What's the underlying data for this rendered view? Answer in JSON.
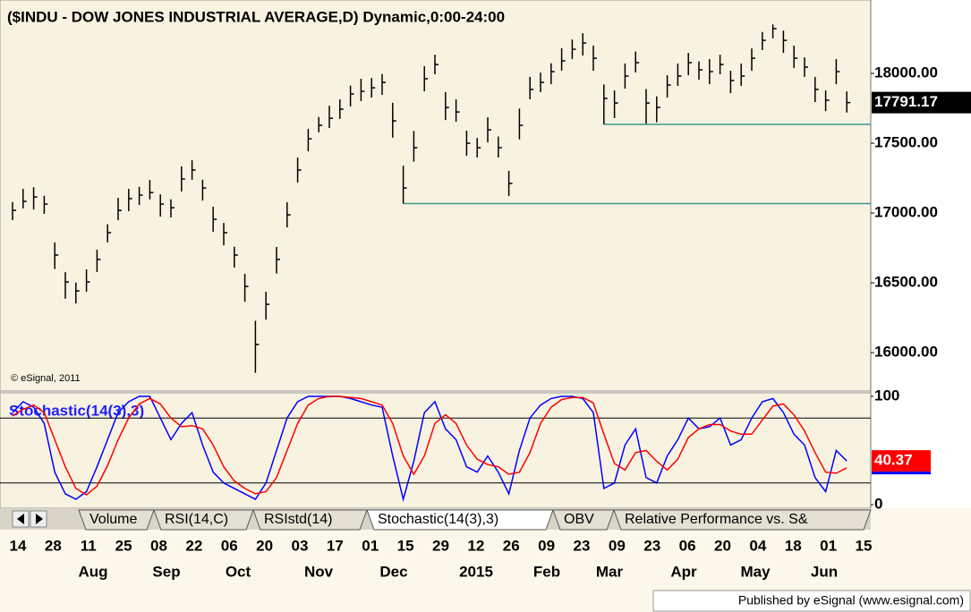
{
  "chart_data": [
    {
      "type": "ohlc",
      "title": "($INDU - DOW JONES INDUSTRIAL AVERAGE,D) Dynamic,0:00-24:00",
      "copyright": "© eSignal, 2011",
      "color": "#000000",
      "line_color": "#3a9a8a",
      "high": [
        17079,
        17173,
        17185,
        17124,
        16789,
        16576,
        16502,
        16596,
        16737,
        16919,
        17109,
        17173,
        17188,
        17237,
        17134,
        17098,
        17334,
        17378,
        17239,
        17045,
        16929,
        16759,
        16564,
        16228,
        16436,
        16757,
        17077,
        17398,
        17602,
        17688,
        17769,
        17814,
        17913,
        17962,
        17967,
        17996,
        17790,
        17339,
        17588,
        18052,
        18134,
        17866,
        17814,
        17590,
        17538,
        17686,
        17548,
        17302,
        17748,
        17975,
        18006,
        18073,
        18180,
        18243,
        18288,
        18199,
        17921,
        17878,
        18071,
        18157,
        17888,
        17836,
        17987,
        18071,
        18147,
        18086,
        18103,
        18134,
        18019,
        18071,
        18179,
        18297,
        18351,
        18307,
        18199,
        18115,
        17975,
        17878,
        18103,
        17871
      ],
      "low": [
        16949,
        17033,
        17025,
        16994,
        16599,
        16386,
        16352,
        16436,
        16577,
        16789,
        16949,
        17013,
        17058,
        17097,
        16974,
        16968,
        17154,
        17238,
        17089,
        16865,
        16769,
        16609,
        16364,
        15855,
        16236,
        16567,
        16897,
        17218,
        17442,
        17578,
        17609,
        17674,
        17763,
        17802,
        17827,
        17846,
        17540,
        17068,
        17368,
        17872,
        17994,
        17666,
        17654,
        17410,
        17398,
        17506,
        17398,
        17122,
        17528,
        17815,
        17866,
        17923,
        18020,
        18103,
        18128,
        18019,
        17635,
        17680,
        17891,
        18007,
        17640,
        17650,
        17827,
        17911,
        17987,
        17956,
        17923,
        17994,
        17859,
        17911,
        18019,
        18167,
        18251,
        18147,
        18039,
        17975,
        17795,
        17730,
        17923,
        17720
      ],
      "close": [
        17019,
        17083,
        17115,
        17064,
        16699,
        16506,
        16442,
        16506,
        16667,
        16859,
        17019,
        17103,
        17128,
        17147,
        17064,
        17038,
        17244,
        17308,
        17179,
        16955,
        16859,
        16699,
        16474,
        16058,
        16346,
        16667,
        16987,
        17308,
        17532,
        17628,
        17679,
        17744,
        17853,
        17872,
        17897,
        17936,
        17660,
        17179,
        17468,
        17962,
        18064,
        17756,
        17724,
        17500,
        17468,
        17596,
        17468,
        17212,
        17628,
        17885,
        17936,
        18013,
        18090,
        18173,
        18218,
        18109,
        17821,
        17788,
        17981,
        18077,
        17788,
        17756,
        17917,
        17981,
        18077,
        18026,
        18013,
        18064,
        17949,
        17981,
        18109,
        18237,
        18321,
        18237,
        18109,
        18045,
        17885,
        17808,
        18013,
        17791.17
      ],
      "hlines": [
        {
          "y": 17068,
          "from": 37
        },
        {
          "y": 17635,
          "from": 56
        }
      ],
      "ylim": [
        15725,
        18526
      ],
      "yticks": [
        {
          "value": 18000,
          "label": "18000.00"
        },
        {
          "value": 17500,
          "label": "17500.00"
        },
        {
          "value": 17000,
          "label": "17000.00"
        },
        {
          "value": 16500,
          "label": "16500.00"
        },
        {
          "value": 16000,
          "label": "16000.00"
        }
      ],
      "date_labels": [
        "14",
        "28",
        "11",
        "25",
        "08",
        "22",
        "06",
        "20",
        "03",
        "17",
        "01",
        "15",
        "29",
        "12",
        "26",
        "09",
        "23",
        "09",
        "23",
        "06",
        "20",
        "04",
        "18",
        "01",
        "15"
      ],
      "month_labels": [
        "Aug",
        "Sep",
        "Oct",
        "Nov",
        "Dec",
        "2015",
        "Feb",
        "Mar",
        "Apr",
        "May",
        "Jun"
      ]
    },
    {
      "type": "line",
      "title": "Stochastic(14(3),3)",
      "ylim": [
        -3.3,
        103.3
      ],
      "yticks": [
        100,
        0
      ],
      "levels": [
        80,
        20
      ],
      "series": [
        {
          "name": "%K",
          "color": "#0000ff",
          "values": [
            85,
            95,
            90,
            75,
            30,
            10,
            5,
            12,
            35,
            60,
            85,
            95,
            100,
            100,
            80,
            60,
            75,
            85,
            55,
            30,
            20,
            15,
            10,
            5,
            20,
            50,
            80,
            95,
            100,
            100,
            100,
            100,
            98,
            95,
            92,
            90,
            45,
            5,
            40,
            85,
            95,
            70,
            60,
            35,
            30,
            45,
            30,
            10,
            50,
            80,
            92,
            98,
            100,
            100,
            98,
            85,
            15,
            20,
            55,
            70,
            25,
            20,
            45,
            60,
            80,
            70,
            72,
            80,
            55,
            60,
            80,
            95,
            98,
            85,
            65,
            55,
            25,
            12,
            50,
            40.37
          ]
        },
        {
          "name": "%D",
          "color": "#ff0000",
          "values": [
            82,
            88,
            92,
            85,
            60,
            35,
            15,
            9,
            17,
            36,
            60,
            80,
            93,
            98,
            93,
            80,
            72,
            73,
            70,
            55,
            35,
            22,
            15,
            10,
            12,
            25,
            50,
            75,
            92,
            98,
            100,
            100,
            99,
            98,
            95,
            92,
            75,
            45,
            28,
            45,
            75,
            83,
            75,
            55,
            42,
            37,
            35,
            28,
            30,
            48,
            75,
            90,
            97,
            99,
            99,
            94,
            65,
            38,
            32,
            48,
            50,
            40,
            32,
            42,
            62,
            70,
            74,
            74,
            68,
            65,
            65,
            78,
            91,
            93,
            83,
            68,
            48,
            30,
            29,
            34
          ]
        }
      ]
    }
  ],
  "tabs": [
    "Volume",
    "RSI(14,C)",
    "RSIstd(14)",
    "Stochastic(14(3),3)",
    "OBV",
    "Relative Performance vs. S&"
  ],
  "footer": "Published by eSignal (www.esignal.com)"
}
